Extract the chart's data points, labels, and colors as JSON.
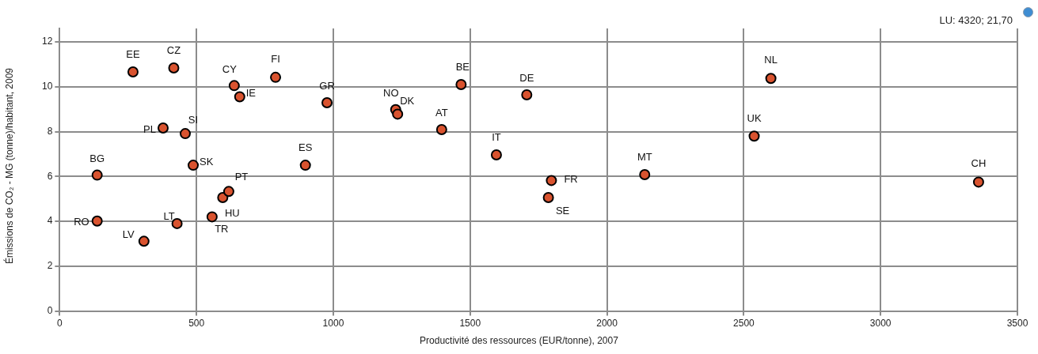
{
  "chart_data": {
    "type": "scatter",
    "xlabel": "Productivité des ressources (EUR/tonne), 2007",
    "ylabel": "Émissions de CO₂ - MG (tonne)/habitant, 2009",
    "x": [
      137,
      137,
      308,
      268,
      417,
      378,
      429,
      459,
      488,
      557,
      596,
      618,
      638,
      658,
      789,
      898,
      977,
      1228,
      1235,
      1396,
      1467,
      1596,
      1707,
      1786,
      1797,
      2138,
      2538,
      2599,
      3358
    ],
    "series": [
      {
        "color": "#d9532f",
        "values": [
          6.06,
          4.01,
          3.11,
          10.66,
          10.84,
          8.16,
          3.9,
          7.91,
          6.5,
          4.2,
          5.06,
          5.33,
          10.05,
          9.55,
          10.42,
          6.5,
          9.29,
          8.98,
          8.78,
          8.09,
          10.1,
          6.96,
          9.64,
          5.06,
          5.82,
          6.08,
          7.8,
          10.37,
          5.75
        ]
      }
    ],
    "annotations": [
      {
        "text": "BG",
        "x": 137,
        "y": 6.06
      },
      {
        "text": "RO",
        "x": 137,
        "y": 4.01
      },
      {
        "text": "LV",
        "x": 308,
        "y": 3.11
      },
      {
        "text": "EE",
        "x": 268,
        "y": 10.66
      },
      {
        "text": "CZ",
        "x": 417,
        "y": 10.84
      },
      {
        "text": "PL",
        "x": 378,
        "y": 8.16
      },
      {
        "text": "LT",
        "x": 429,
        "y": 3.9
      },
      {
        "text": "SI",
        "x": 459,
        "y": 7.91
      },
      {
        "text": "SK",
        "x": 488,
        "y": 6.5
      },
      {
        "text": "TR",
        "x": 557,
        "y": 4.2
      },
      {
        "text": "HU",
        "x": 596,
        "y": 5.06
      },
      {
        "text": "PT",
        "x": 618,
        "y": 5.33
      },
      {
        "text": "CY",
        "x": 638,
        "y": 10.05
      },
      {
        "text": "IE",
        "x": 658,
        "y": 9.55
      },
      {
        "text": "FI",
        "x": 789,
        "y": 10.42
      },
      {
        "text": "ES",
        "x": 898,
        "y": 6.5
      },
      {
        "text": "GR",
        "x": 977,
        "y": 9.29
      },
      {
        "text": "NO",
        "x": 1228,
        "y": 8.98
      },
      {
        "text": "DK",
        "x": 1235,
        "y": 8.78
      },
      {
        "text": "AT",
        "x": 1396,
        "y": 8.09
      },
      {
        "text": "BE",
        "x": 1467,
        "y": 10.1
      },
      {
        "text": "IT",
        "x": 1596,
        "y": 6.96
      },
      {
        "text": "DE",
        "x": 1707,
        "y": 9.64
      },
      {
        "text": "SE",
        "x": 1786,
        "y": 5.06
      },
      {
        "text": "FR",
        "x": 1797,
        "y": 5.82
      },
      {
        "text": "MT",
        "x": 2138,
        "y": 6.08
      },
      {
        "text": "UK",
        "x": 2538,
        "y": 7.8
      },
      {
        "text": "NL",
        "x": 2599,
        "y": 10.37
      },
      {
        "text": "CH",
        "x": 3358,
        "y": 5.75
      },
      "LU: 4320; 21,70"
    ],
    "xlim": [
      0,
      3500
    ],
    "xticks": [
      0,
      500,
      1000,
      1500,
      2000,
      2500,
      3000,
      3500
    ],
    "ylim": [
      0,
      12.6
    ],
    "yticks": [
      0,
      2,
      4,
      6,
      8,
      10,
      12
    ],
    "grid": true,
    "legend": false,
    "marker": "circle"
  }
}
